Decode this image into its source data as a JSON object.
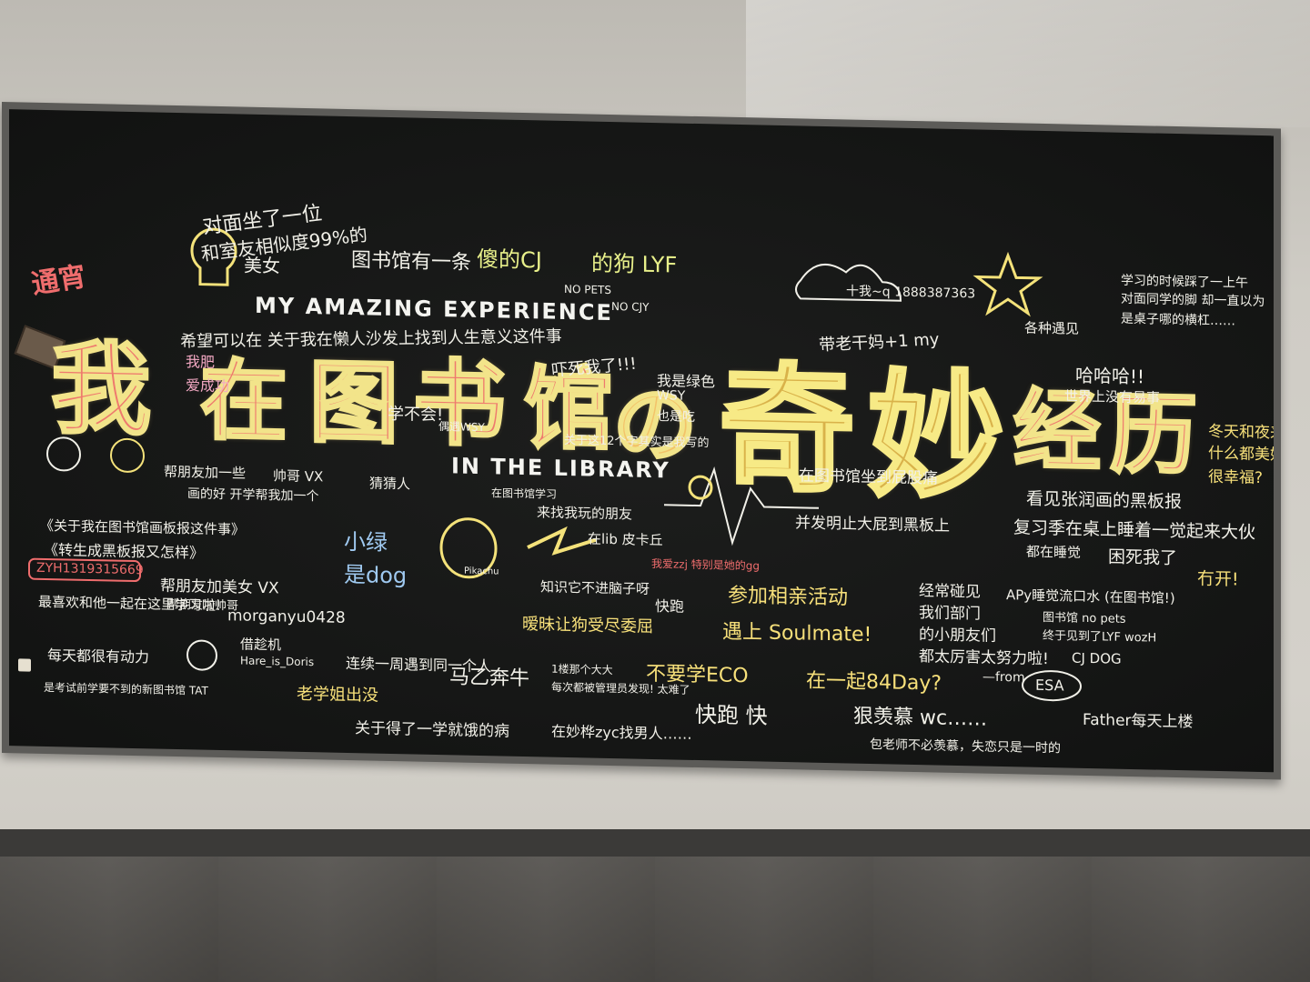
{
  "board": {
    "title_chars": [
      "我",
      "在",
      "图",
      "书",
      "馆",
      "の"
    ],
    "title_big_chars": [
      "奇",
      "妙",
      "经",
      "历"
    ],
    "heading_top": "MY AMAZING EXPERIENCE",
    "heading_bottom": "IN THE LIBRARY"
  },
  "notes": [
    {
      "text": "对面坐了一位",
      "color": "#f1f0e8"
    },
    {
      "text": "和室友相似度99%的",
      "color": "#f1f0e8"
    },
    {
      "text": "美女",
      "color": "#f1f0e8"
    },
    {
      "text": "通宵",
      "color": "#ef6d6d"
    },
    {
      "text": "图书馆有一条",
      "color": "#f1f0e8"
    },
    {
      "text": "傻的CJ",
      "color": "#e8f08a"
    },
    {
      "text": "的狗 LYF",
      "color": "#e8f08a"
    },
    {
      "text": "NO PETS",
      "color": "#f1f0e8"
    },
    {
      "text": "NO CJY",
      "color": "#f1f0e8"
    },
    {
      "text": "希望可以在 关于我在懒人沙发上找到人生意义这件事",
      "color": "#f1f0e8"
    },
    {
      "text": "我肥",
      "color": "#f4a9c4"
    },
    {
      "text": "爱成功",
      "color": "#f4a9c4"
    },
    {
      "text": "学不会!",
      "color": "#f1f0e8"
    },
    {
      "text": "吓死我了!!!",
      "color": "#f1f0e8"
    },
    {
      "text": "我是绿色",
      "color": "#f1f0e8"
    },
    {
      "text": "WSY",
      "color": "#f1f0e8"
    },
    {
      "text": "也是吃",
      "color": "#f1f0e8"
    },
    {
      "text": "带老干妈+1 my",
      "color": "#f1f0e8"
    },
    {
      "text": "十我~q 1888387363",
      "color": "#f1f0e8"
    },
    {
      "text": "学习的时候踩了一上午",
      "color": "#f1f0e8"
    },
    {
      "text": "对面同学的脚 却一直以为",
      "color": "#f1f0e8"
    },
    {
      "text": "是桌子哪的横杠……",
      "color": "#f1f0e8"
    },
    {
      "text": "哈哈哈!!",
      "color": "#f1f0e8"
    },
    {
      "text": "世界上没有易事",
      "color": "#f1f0e8"
    },
    {
      "text": "各种遇见",
      "color": "#f1f0e8"
    },
    {
      "text": "冬天和夜来",
      "color": "#f7e07a"
    },
    {
      "text": "什么都美好",
      "color": "#f7e07a"
    },
    {
      "text": "很幸福?",
      "color": "#f7e07a"
    },
    {
      "text": "偶遇WSY",
      "color": "#f1f0e8"
    },
    {
      "text": "关于这12个字其实是我写的",
      "color": "#f1f0e8"
    },
    {
      "text": "帅哥 VX",
      "color": "#f1f0e8"
    },
    {
      "text": "帮朋友加一些",
      "color": "#f1f0e8"
    },
    {
      "text": "画的好 开学帮我加一个",
      "color": "#f1f0e8"
    },
    {
      "text": "猜猜人",
      "color": "#f1f0e8"
    },
    {
      "text": "在图书馆学习",
      "color": "#f1f0e8"
    },
    {
      "text": "来找我玩的朋友",
      "color": "#f1f0e8"
    },
    {
      "text": "在图书馆坐到屁股痛",
      "color": "#f1f0e8"
    },
    {
      "text": "并发明止大屁到黑板上",
      "color": "#f1f0e8"
    },
    {
      "text": "看见张润画的黑板报",
      "color": "#f1f0e8"
    },
    {
      "text": "复习季在桌上睡着一觉起来大伙",
      "color": "#f1f0e8"
    },
    {
      "text": "困死我了",
      "color": "#f1f0e8"
    },
    {
      "text": "都在睡觉",
      "color": "#f1f0e8"
    },
    {
      "text": "冇开!",
      "color": "#f7e07a"
    },
    {
      "text": "《关于我在图书馆画板报这件事》",
      "color": "#f1f0e8"
    },
    {
      "text": "《转生成黑板报又怎样》",
      "color": "#f1f0e8"
    },
    {
      "text": "ZYH1319315669",
      "color": "#ef6d6d"
    },
    {
      "text": "小绿",
      "color": "#9fc9f0"
    },
    {
      "text": "是dog",
      "color": "#9fc9f0"
    },
    {
      "text": "Pikachu",
      "color": "#f1f0e8"
    },
    {
      "text": "在lib 皮卡丘",
      "color": "#f1f0e8"
    },
    {
      "text": "我爱zzj 特别是她的gg",
      "color": "#ef6d6d"
    },
    {
      "text": "知识它不进脑子呀",
      "color": "#f1f0e8"
    },
    {
      "text": "参加相亲活动",
      "color": "#f7e07a"
    },
    {
      "text": "遇上 Soulmate!",
      "color": "#f7e07a"
    },
    {
      "text": "经常碰见",
      "color": "#f1f0e8"
    },
    {
      "text": "我们部门",
      "color": "#f1f0e8"
    },
    {
      "text": "的小朋友们",
      "color": "#f1f0e8"
    },
    {
      "text": "都太厉害太努力啦!",
      "color": "#f1f0e8"
    },
    {
      "text": "APy睡觉流口水 (在图书馆!)",
      "color": "#f1f0e8"
    },
    {
      "text": "图书馆 no pets",
      "color": "#f1f0e8"
    },
    {
      "text": "终于见到了LYF wozH",
      "color": "#f1f0e8"
    },
    {
      "text": "帮朋友加美女 VX",
      "color": "#f1f0e8"
    },
    {
      "text": "帮朋友加帅哥",
      "color": "#f1f0e8"
    },
    {
      "text": "morganyu0428",
      "color": "#f1f0e8"
    },
    {
      "text": "最喜欢和他一起在这里学习啦!",
      "color": "#f1f0e8"
    },
    {
      "text": "每天都很有动力",
      "color": "#f1f0e8"
    },
    {
      "text": "是考试前学要不到的新图书馆 TAT",
      "color": "#f1f0e8"
    },
    {
      "text": "借趁机",
      "color": "#f1f0e8"
    },
    {
      "text": "Hare_is_Doris",
      "color": "#f1f0e8"
    },
    {
      "text": "连续一周遇到同一个人",
      "color": "#f1f0e8"
    },
    {
      "text": "暧昧让狗受尽委屈",
      "color": "#f7e07a"
    },
    {
      "text": "马乙奔牛",
      "color": "#f1f0e8"
    },
    {
      "text": "不要学ECO",
      "color": "#f7e07a"
    },
    {
      "text": "在一起84Day?",
      "color": "#f7e07a"
    },
    {
      "text": "快跑",
      "color": "#f1f0e8"
    },
    {
      "text": "快跑 快",
      "color": "#f1f0e8"
    },
    {
      "text": "老学姐出没",
      "color": "#f7e07a"
    },
    {
      "text": "1楼那个大大",
      "color": "#f1f0e8"
    },
    {
      "text": "每次都被管理员发现! 太难了",
      "color": "#f1f0e8"
    },
    {
      "text": "关于得了一学就饿的病",
      "color": "#f1f0e8"
    },
    {
      "text": "在妙桦zyc找男人……",
      "color": "#f1f0e8"
    },
    {
      "text": "狠羡慕 wc……",
      "color": "#f1f0e8"
    },
    {
      "text": "包老师不必羡慕，失恋只是一时的",
      "color": "#f1f0e8"
    },
    {
      "text": "Father每天上楼",
      "color": "#f1f0e8"
    },
    {
      "text": "ESA",
      "color": "#f1f0e8"
    },
    {
      "text": "CJ DOG",
      "color": "#f1f0e8"
    },
    {
      "text": "—from",
      "color": "#f1f0e8"
    }
  ]
}
